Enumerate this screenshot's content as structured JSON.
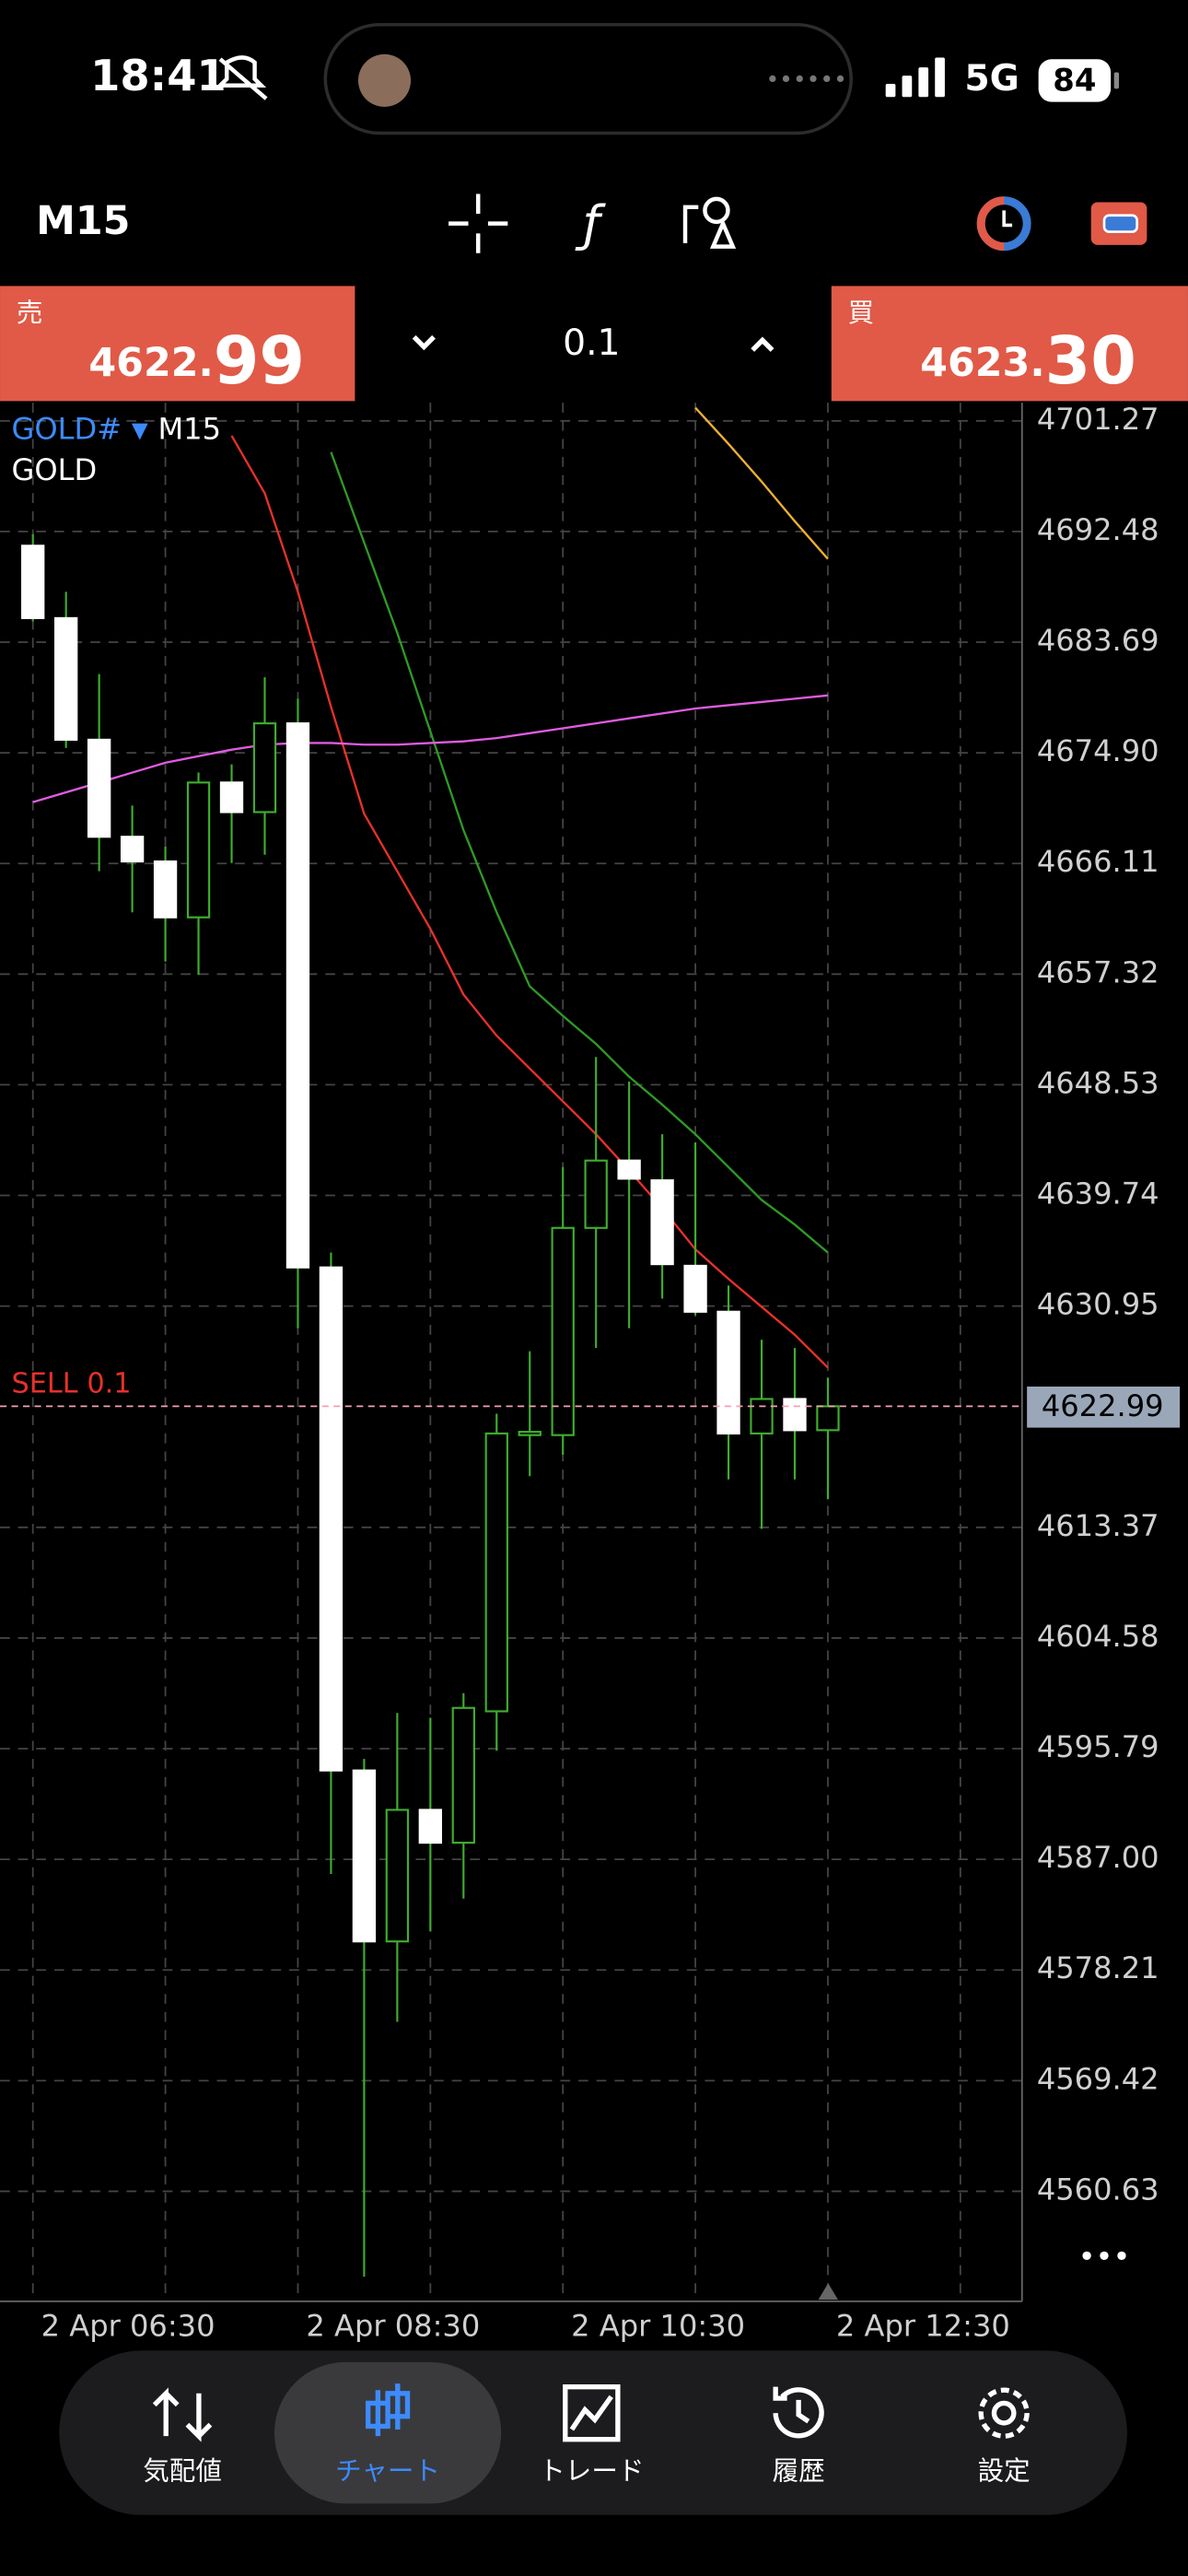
{
  "status_bar": {
    "time": "18:41",
    "network": "5G",
    "battery": "84"
  },
  "toolbar": {
    "timeframe": "M15"
  },
  "trade_panel": {
    "sell": {
      "label": "売",
      "price_main": "4622.",
      "price_big": "99"
    },
    "volume": "0.1",
    "buy": {
      "label": "買",
      "price_main": "4623.",
      "price_big": "30"
    }
  },
  "chart_data": {
    "type": "candlestick",
    "symbol": "GOLD#",
    "timeframe": "M15",
    "description": "GOLD",
    "categories": [
      "2 Apr 06:30",
      null,
      null,
      null,
      null,
      null,
      null,
      null,
      "2 Apr 08:30",
      null,
      null,
      null,
      null,
      null,
      null,
      null,
      "2 Apr 10:30",
      null,
      null,
      null,
      null,
      null,
      null,
      null,
      "2 Apr 12:30"
    ],
    "open": [
      4691.35,
      4685.6,
      4675.94,
      4668.23,
      4666.27,
      4661.83,
      4672.54,
      4670.19,
      4677.24,
      4634.02,
      4594.06,
      4580.48,
      4590.93,
      4588.32,
      4598.76,
      4620.7,
      4620.7,
      4637.16,
      4642.51,
      4640.94,
      4634.15,
      4630.5,
      4620.83,
      4623.57,
      4621.09
    ],
    "high": [
      4692.26,
      4687.69,
      4681.16,
      4670.71,
      4667.45,
      4673.33,
      4673.98,
      4680.9,
      4679.2,
      4635.2,
      4594.98,
      4598.63,
      4598.24,
      4600.2,
      4622.4,
      4627.36,
      4641.99,
      4650.74,
      4648.78,
      4644.6,
      4643.95,
      4632.58,
      4628.28,
      4627.62,
      4625.27
    ],
    "low": [
      4685.34,
      4675.28,
      4665.49,
      4662.23,
      4658.31,
      4657.26,
      4666.14,
      4666.8,
      4629.19,
      4585.84,
      4553.85,
      4574.09,
      4581.27,
      4583.88,
      4595.63,
      4617.44,
      4619.14,
      4627.62,
      4629.19,
      4631.54,
      4630.23,
      4617.18,
      4613.26,
      4617.18,
      4615.61
    ],
    "close": [
      4685.6,
      4675.94,
      4668.23,
      4666.27,
      4661.83,
      4672.54,
      4670.19,
      4677.24,
      4634.02,
      4594.06,
      4580.48,
      4590.93,
      4588.32,
      4599.03,
      4620.83,
      4620.96,
      4637.16,
      4642.51,
      4641.07,
      4634.28,
      4630.5,
      4620.83,
      4623.57,
      4621.09,
      4622.99
    ],
    "colors": {
      "bull": "#3fae2e",
      "bear": "#ffffff",
      "wick": "#3fae2e"
    },
    "indicators": [
      {
        "color": "#e8312a",
        "values": [
          null,
          null,
          null,
          null,
          null,
          null,
          4700.09,
          4695.52,
          4687.69,
          4678.55,
          4670.06,
          4665.49,
          4660.92,
          4655.7,
          4652.43,
          4649.82,
          4647.21,
          4644.6,
          4641.72,
          4638.72,
          4635.46,
          4633.11,
          4630.89,
          4628.67,
          4626.06
        ]
      },
      {
        "color": "#2f9a25",
        "values": [
          null,
          null,
          null,
          null,
          null,
          null,
          null,
          null,
          null,
          4698.79,
          4691.61,
          4684.43,
          4676.59,
          4668.76,
          4662.23,
          4656.35,
          4654.0,
          4651.78,
          4649.17,
          4646.95,
          4644.6,
          4641.99,
          4639.38,
          4637.42,
          4635.2
        ]
      },
      {
        "color": "#e05ce0",
        "values": [
          4670.98,
          4671.76,
          4672.54,
          4673.33,
          4674.11,
          4674.63,
          4675.15,
          4675.55,
          4675.68,
          4675.68,
          4675.55,
          4675.55,
          4675.68,
          4675.81,
          4676.07,
          4676.46,
          4676.85,
          4677.24,
          4677.64,
          4678.03,
          4678.42,
          4678.68,
          4678.94,
          4679.2,
          4679.46
        ]
      },
      {
        "color": "#f0b030",
        "values": [
          null,
          null,
          null,
          null,
          null,
          null,
          null,
          null,
          null,
          null,
          null,
          null,
          null,
          null,
          null,
          null,
          null,
          null,
          null,
          null,
          4702.31,
          4699.44,
          4696.44,
          4693.3,
          4690.3
        ]
      }
    ],
    "ylim": [
      4551.89,
      4702.71
    ],
    "yticks": [
      4701.27,
      4692.48,
      4683.69,
      {
        "value": 4674.9,
        "label": "4674.90"
      },
      4666.11,
      4657.32,
      4648.53,
      4639.74,
      4630.95,
      4613.37,
      4604.58,
      4595.79,
      {
        "value": 4587.0,
        "label": "4587.00"
      },
      4578.21,
      4569.42,
      4560.63
    ],
    "grid": true,
    "bid": {
      "value": 4622.99,
      "color": "#f4a0b0"
    },
    "order_label": "SELL 0.1"
  },
  "nav": {
    "items": [
      "気配値",
      "チャート",
      "トレード",
      "履歴",
      "設定"
    ],
    "active": 1
  }
}
